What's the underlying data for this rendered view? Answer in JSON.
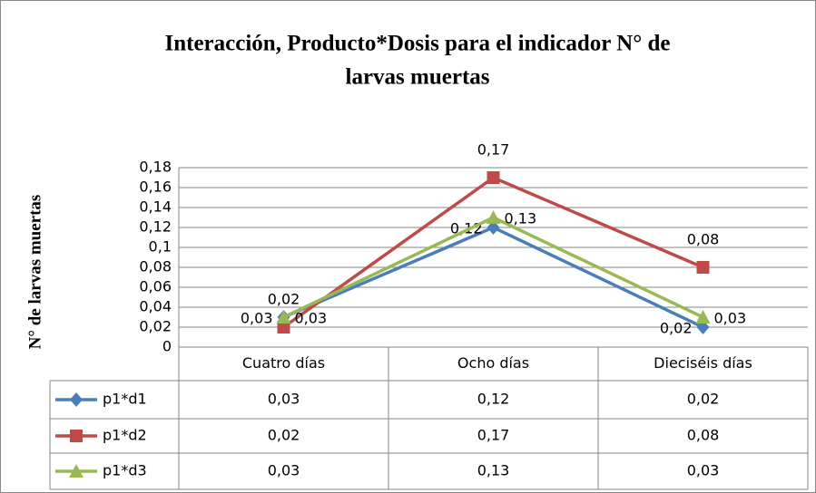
{
  "chart_data": {
    "type": "line",
    "title": [
      "Interacción, Producto*Dosis para el indicador N° de",
      "larvas muertas"
    ],
    "y_label": "N° de larvas muertas",
    "categories": [
      "Cuatro días",
      "Ocho días",
      "Dieciséis  días"
    ],
    "series": [
      {
        "name": "p1*d1",
        "color": "#4a7ebb",
        "marker": "diamond",
        "values": [
          0.03,
          0.12,
          0.02
        ],
        "value_labels": [
          "0,03",
          "0,12",
          "0,02"
        ]
      },
      {
        "name": "p1*d2",
        "color": "#be4b48",
        "marker": "square",
        "values": [
          0.02,
          0.17,
          0.08
        ],
        "value_labels": [
          "0,02",
          "0,17",
          "0,08"
        ]
      },
      {
        "name": "p1*d3",
        "color": "#98b954",
        "marker": "triangle",
        "values": [
          0.03,
          0.13,
          0.03
        ],
        "value_labels": [
          "0,03",
          "0,13",
          "0,03"
        ]
      }
    ],
    "ylim": [
      0,
      0.18
    ],
    "yticks": [
      0,
      {
        "value": 0.02,
        "label": "0,02"
      },
      {
        "value": 0.04,
        "label": "0,04"
      },
      {
        "value": 0.06,
        "label": "0,06"
      },
      {
        "value": 0.08,
        "label": "0,08"
      },
      {
        "value": 0.1,
        "label": "0,1"
      },
      {
        "value": 0.12,
        "label": "0,12"
      },
      {
        "value": 0.14,
        "label": "0,14"
      },
      {
        "value": 0.16,
        "label": "0,16"
      },
      {
        "value": 0.18,
        "label": "0,18"
      }
    ],
    "grid": true,
    "data_table": true
  }
}
